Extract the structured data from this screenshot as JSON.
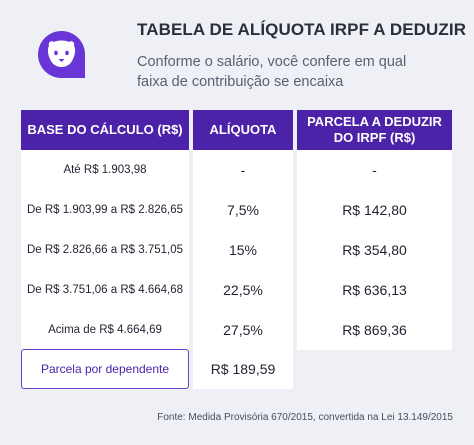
{
  "header": {
    "title": "TABELA DE ALÍQUOTA IRPF A DEDUZIR",
    "subtitle": "Conforme o salário, você confere em qual faixa de contribuição se encaixa",
    "accent_color": "#4b22a8",
    "logo_icon": "lion-face-icon"
  },
  "table": {
    "columns": [
      "BASE DO CÁLCULO (R$)",
      "ALÍQUOTA",
      "PARCELA A DEDUZIR DO IRPF (R$)"
    ],
    "rows": [
      {
        "base": "Até R$ 1.903,98",
        "aliquota": "-",
        "parcela": "-"
      },
      {
        "base": "De R$ 1.903,99 a R$ 2.826,65",
        "aliquota": "7,5%",
        "parcela": "R$ 142,80"
      },
      {
        "base": "De R$ 2.826,66 a R$ 3.751,05",
        "aliquota": "15%",
        "parcela": "R$ 354,80"
      },
      {
        "base": "De R$ 3.751,06 a R$ 4.664,68",
        "aliquota": "22,5%",
        "parcela": "R$ 636,13"
      },
      {
        "base": "Acima de R$ 4.664,69",
        "aliquota": "27,5%",
        "parcela": "R$ 869,36"
      }
    ]
  },
  "dependent": {
    "label": "Parcela por dependente",
    "value": "R$ 189,59"
  },
  "source": "Fonte: Medida Provisória 670/2015, convertida na Lei 13.149/2015"
}
